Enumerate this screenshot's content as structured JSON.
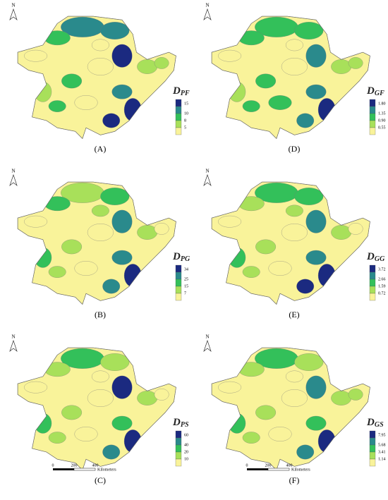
{
  "panels": [
    {
      "label": "(A)",
      "north": "N",
      "legend": {
        "symbol": "D",
        "subscript": "PF",
        "ticks": [
          "15",
          "10",
          "8",
          "5"
        ]
      }
    },
    {
      "label": "(D)",
      "north": "N",
      "legend": {
        "symbol": "D",
        "subscript": "GF",
        "ticks": [
          "1.80",
          "1.35",
          "0.90",
          "0.55"
        ]
      }
    },
    {
      "label": "(B)",
      "north": "N",
      "legend": {
        "symbol": "D",
        "subscript": "PG",
        "ticks": [
          "34",
          "25",
          "15",
          "7"
        ]
      }
    },
    {
      "label": "(E)",
      "north": "N",
      "legend": {
        "symbol": "D",
        "subscript": "GG",
        "ticks": [
          "3.72",
          "2.66",
          "1.59",
          "0.72"
        ]
      }
    },
    {
      "label": "(C)",
      "north": "N",
      "legend": {
        "symbol": "D",
        "subscript": "PS",
        "ticks": [
          "60",
          "40",
          "20",
          "10"
        ]
      },
      "scale_bar": {
        "ticks": [
          "0",
          "200",
          "400"
        ],
        "unit": "Kilometers"
      }
    },
    {
      "label": "(F)",
      "north": "N",
      "legend": {
        "symbol": "D",
        "subscript": "GS",
        "ticks": [
          "7.95",
          "5.68",
          "3.41",
          "1.14"
        ]
      },
      "scale_bar": {
        "ticks": [
          "0",
          "200",
          "400"
        ],
        "unit": "Kilometers"
      }
    }
  ]
}
